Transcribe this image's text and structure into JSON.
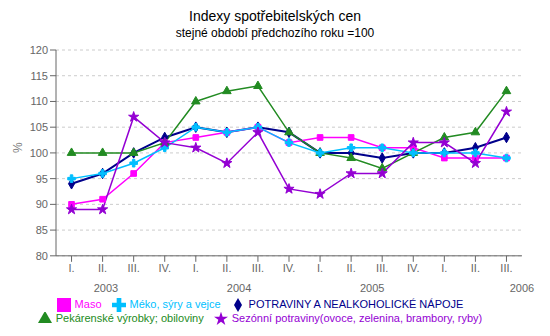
{
  "chart_data": {
    "type": "line",
    "title": "Indexy spotřebitelských cen",
    "subtitle": "stejné období předchozího roku =100",
    "y_label": "%",
    "ylim": [
      80,
      120
    ],
    "yticks": [
      80,
      85,
      90,
      95,
      100,
      105,
      110,
      115,
      120
    ],
    "grid": true,
    "categories": [
      "I.",
      "II.",
      "III.",
      "IV.",
      "I.",
      "II.",
      "III.",
      "IV.",
      "I.",
      "II.",
      "III.",
      "IV.",
      "I.",
      "II.",
      "III."
    ],
    "annotations": [
      {
        "text": "2003",
        "x": 1.5
      },
      {
        "text": "2004",
        "x": 5.5
      },
      {
        "text": "2005",
        "x": 9.5
      },
      {
        "text": "2006",
        "x": 14.0
      }
    ],
    "series": [
      {
        "name": "POTRAVINY A NEALKOHOLICKÉ NÁPOJE",
        "color": "#00008B",
        "marker": "diamond",
        "values": [
          94,
          96,
          100,
          103,
          105,
          104,
          105,
          104,
          100,
          100,
          99,
          100,
          100,
          101,
          103
        ]
      },
      {
        "name": "Maso",
        "color": "#FF00FF",
        "marker": "square",
        "values": [
          90,
          91,
          96,
          102,
          103,
          104,
          105,
          102,
          103,
          103,
          101,
          101,
          99,
          99,
          99
        ]
      },
      {
        "name": "Pekárenské výrobky; obiloviny",
        "color": "#228B22",
        "marker": "triangle",
        "values": [
          100,
          100,
          100,
          102,
          110,
          112,
          113,
          104,
          100,
          99,
          97,
          100,
          103,
          104,
          112
        ]
      },
      {
        "name": "Méko, sýry a vejce",
        "color": "#00BFFF",
        "marker": "cross",
        "values": [
          95,
          96,
          98,
          101,
          105,
          104,
          105,
          102,
          100,
          101,
          101,
          100,
          100,
          100,
          99
        ]
      },
      {
        "name": "Sezónní potraviny(ovoce, zelenina, brambory, ryby)",
        "color": "#9400D3",
        "marker": "star",
        "values": [
          89,
          89,
          107,
          102,
          101,
          98,
          104,
          93,
          92,
          96,
          96,
          102,
          102,
          98,
          108
        ]
      }
    ]
  }
}
